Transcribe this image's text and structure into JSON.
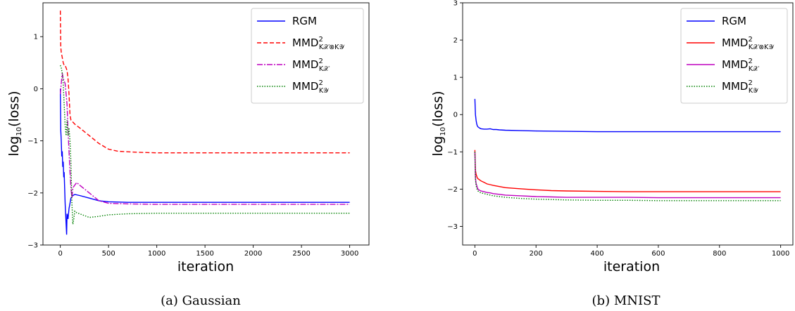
{
  "chart_data": [
    {
      "type": "line",
      "caption": "(a) Gaussian",
      "xlabel": "iteration",
      "ylabel_base": "log",
      "ylabel_sub": "10",
      "ylabel_rest": "(loss)",
      "xlim": [
        -180,
        3200
      ],
      "ylim": [
        -3.0,
        1.65
      ],
      "xticks": [
        0,
        500,
        1000,
        1500,
        2000,
        2500,
        3000
      ],
      "yticks": [
        -3,
        -2,
        -1,
        0,
        1
      ],
      "grid": false,
      "legend_position": "top-right",
      "series": [
        {
          "legend_main": "RGM",
          "legend_sub": "",
          "color": "#0000ff",
          "dash": "",
          "x": [
            0,
            5,
            10,
            15,
            20,
            25,
            30,
            35,
            40,
            45,
            50,
            55,
            60,
            65,
            70,
            80,
            90,
            100,
            110,
            130,
            150,
            200,
            300,
            400,
            500,
            700,
            1000,
            1500,
            2000,
            2500,
            3000
          ],
          "y": [
            0.0,
            -0.8,
            -1.0,
            -1.3,
            -1.2,
            -1.5,
            -1.4,
            -1.7,
            -1.6,
            -1.9,
            -2.2,
            -2.4,
            -2.6,
            -2.8,
            -2.4,
            -2.5,
            -2.3,
            -2.2,
            -2.1,
            -2.05,
            -2.03,
            -2.05,
            -2.1,
            -2.15,
            -2.17,
            -2.18,
            -2.18,
            -2.18,
            -2.18,
            -2.18,
            -2.18
          ]
        },
        {
          "legend_main": "MMD",
          "legend_sub": "K𝒳⊗K𝒴",
          "color": "#ff0000",
          "dash": "6,3",
          "x": [
            0,
            5,
            10,
            20,
            30,
            40,
            50,
            60,
            70,
            80,
            90,
            100,
            110,
            120,
            150,
            200,
            300,
            400,
            500,
            600,
            800,
            1000,
            1500,
            2000,
            2500,
            3000
          ],
          "y": [
            1.5,
            0.8,
            0.7,
            0.6,
            0.5,
            0.45,
            0.45,
            0.4,
            0.35,
            0.2,
            -0.1,
            -0.5,
            -0.6,
            -0.62,
            -0.68,
            -0.75,
            -0.9,
            -1.05,
            -1.16,
            -1.2,
            -1.22,
            -1.23,
            -1.23,
            -1.23,
            -1.23,
            -1.23
          ]
        },
        {
          "legend_main": "MMD",
          "legend_sub": "K𝒳",
          "color": "#bf00bf",
          "dash": "8,2,2,2",
          "x": [
            0,
            10,
            20,
            30,
            40,
            50,
            60,
            70,
            80,
            90,
            100,
            110,
            120,
            130,
            150,
            170,
            200,
            300,
            400,
            500,
            700,
            1000,
            1500,
            2000,
            2500,
            3000
          ],
          "y": [
            -0.1,
            0.1,
            0.3,
            0.2,
            0.15,
            0.1,
            -0.1,
            -0.3,
            -0.8,
            -1.2,
            -1.6,
            -1.9,
            -2.1,
            -1.9,
            -1.85,
            -1.8,
            -1.85,
            -2.0,
            -2.15,
            -2.2,
            -2.21,
            -2.22,
            -2.22,
            -2.22,
            -2.22,
            -2.22
          ]
        },
        {
          "legend_main": "MMD",
          "legend_sub": "K𝒴",
          "color": "#008000",
          "dash": "1.5,2",
          "x": [
            0,
            10,
            20,
            30,
            40,
            50,
            60,
            70,
            80,
            90,
            100,
            110,
            120,
            130,
            140,
            150,
            170,
            200,
            300,
            400,
            500,
            700,
            1000,
            1500,
            2000,
            2500,
            3000
          ],
          "y": [
            0.45,
            0.4,
            0.3,
            0.1,
            -0.3,
            -0.7,
            -0.9,
            -0.6,
            -0.9,
            -0.75,
            -1.0,
            -1.4,
            -2.2,
            -2.6,
            -2.5,
            -2.35,
            -2.38,
            -2.4,
            -2.47,
            -2.45,
            -2.42,
            -2.4,
            -2.39,
            -2.39,
            -2.39,
            -2.39,
            -2.39
          ]
        }
      ]
    },
    {
      "type": "line",
      "caption": "(b) MNIST",
      "xlabel": "iteration",
      "ylabel_base": "log",
      "ylabel_sub": "10",
      "ylabel_rest": "(loss)",
      "xlim": [
        -40,
        1040
      ],
      "ylim": [
        -3.5,
        3.0
      ],
      "xticks": [
        0,
        200,
        400,
        600,
        800,
        1000
      ],
      "yticks": [
        -3,
        -2,
        -1,
        0,
        1,
        2,
        3
      ],
      "grid": false,
      "legend_position": "top-right",
      "series": [
        {
          "legend_main": "RGM",
          "legend_sub": "",
          "color": "#0000ff",
          "dash": "",
          "x": [
            0,
            2,
            4,
            6,
            8,
            10,
            15,
            20,
            30,
            40,
            50,
            60,
            70,
            80,
            100,
            150,
            200,
            300,
            400,
            500,
            600,
            700,
            800,
            900,
            1000
          ],
          "y": [
            0.42,
            0.0,
            -0.15,
            -0.25,
            -0.3,
            -0.33,
            -0.36,
            -0.38,
            -0.39,
            -0.39,
            -0.38,
            -0.4,
            -0.4,
            -0.41,
            -0.42,
            -0.43,
            -0.44,
            -0.45,
            -0.46,
            -0.46,
            -0.46,
            -0.46,
            -0.46,
            -0.46,
            -0.46
          ]
        },
        {
          "legend_main": "MMD",
          "legend_sub": "K𝒳⊗K𝒴",
          "color": "#ff0000",
          "dash": "",
          "x": [
            0,
            2,
            4,
            6,
            8,
            10,
            15,
            20,
            30,
            40,
            50,
            60,
            80,
            100,
            150,
            200,
            250,
            300,
            400,
            500,
            600,
            700,
            800,
            900,
            1000
          ],
          "y": [
            -0.95,
            -1.5,
            -1.6,
            -1.65,
            -1.7,
            -1.72,
            -1.75,
            -1.78,
            -1.82,
            -1.86,
            -1.88,
            -1.9,
            -1.93,
            -1.96,
            -1.99,
            -2.02,
            -2.04,
            -2.05,
            -2.06,
            -2.07,
            -2.07,
            -2.07,
            -2.07,
            -2.07,
            -2.07
          ]
        },
        {
          "legend_main": "MMD",
          "legend_sub": "K𝒳",
          "color": "#bf00bf",
          "dash": "",
          "x": [
            0,
            2,
            4,
            6,
            8,
            10,
            15,
            20,
            30,
            40,
            50,
            60,
            80,
            100,
            150,
            200,
            250,
            300,
            400,
            500,
            600,
            700,
            800,
            900,
            1000
          ],
          "y": [
            -1.0,
            -1.7,
            -1.85,
            -1.9,
            -1.95,
            -2.0,
            -2.03,
            -2.05,
            -2.07,
            -2.09,
            -2.1,
            -2.12,
            -2.14,
            -2.16,
            -2.18,
            -2.2,
            -2.21,
            -2.22,
            -2.22,
            -2.22,
            -2.23,
            -2.23,
            -2.23,
            -2.23,
            -2.23
          ]
        },
        {
          "legend_main": "MMD",
          "legend_sub": "K𝒴",
          "color": "#008000",
          "dash": "1.5,2",
          "x": [
            0,
            2,
            4,
            6,
            8,
            10,
            15,
            20,
            30,
            40,
            50,
            60,
            80,
            100,
            150,
            200,
            250,
            300,
            400,
            500,
            600,
            700,
            800,
            900,
            1000
          ],
          "y": [
            -1.0,
            -1.75,
            -1.9,
            -1.98,
            -2.02,
            -2.05,
            -2.08,
            -2.1,
            -2.12,
            -2.14,
            -2.16,
            -2.18,
            -2.2,
            -2.22,
            -2.25,
            -2.27,
            -2.28,
            -2.29,
            -2.3,
            -2.3,
            -2.31,
            -2.31,
            -2.31,
            -2.31,
            -2.31
          ]
        }
      ]
    }
  ]
}
